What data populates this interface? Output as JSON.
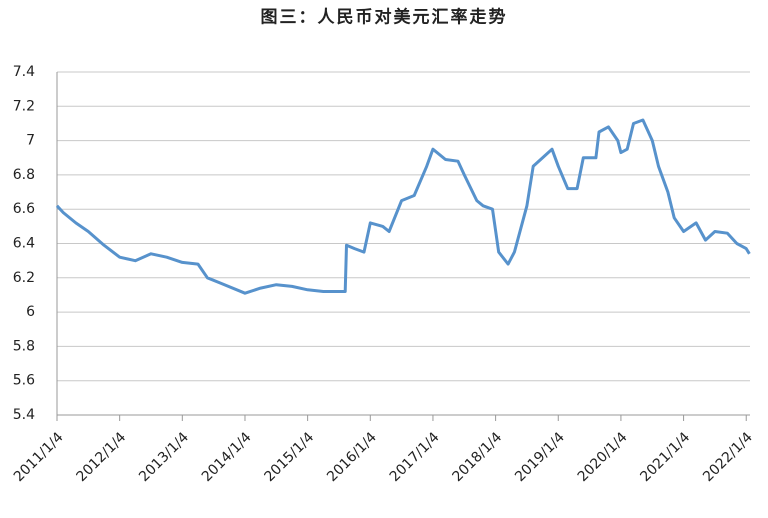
{
  "chart_data": {
    "type": "line",
    "title": "图三：人民币对美元汇率走势",
    "x": [
      2011.0,
      2011.1,
      2011.3,
      2011.5,
      2011.75,
      2012.0,
      2012.25,
      2012.5,
      2012.75,
      2013.0,
      2013.25,
      2013.4,
      2013.6,
      2014.0,
      2014.25,
      2014.5,
      2014.75,
      2015.0,
      2015.25,
      2015.5,
      2015.6,
      2015.62,
      2015.75,
      2015.9,
      2016.0,
      2016.2,
      2016.3,
      2016.5,
      2016.7,
      2016.9,
      2017.0,
      2017.2,
      2017.4,
      2017.5,
      2017.7,
      2017.8,
      2017.95,
      2018.05,
      2018.2,
      2018.3,
      2018.5,
      2018.6,
      2018.75,
      2018.9,
      2019.0,
      2019.15,
      2019.3,
      2019.4,
      2019.6,
      2019.65,
      2019.8,
      2019.95,
      2020.0,
      2020.1,
      2020.2,
      2020.35,
      2020.5,
      2020.6,
      2020.75,
      2020.85,
      2021.0,
      2021.2,
      2021.35,
      2021.5,
      2021.7,
      2021.85,
      2022.0,
      2022.05
    ],
    "series": [
      {
        "color": "#5792cc",
        "values": [
          6.62,
          6.58,
          6.52,
          6.47,
          6.39,
          6.32,
          6.3,
          6.34,
          6.32,
          6.29,
          6.28,
          6.2,
          6.17,
          6.11,
          6.14,
          6.16,
          6.15,
          6.13,
          6.12,
          6.12,
          6.12,
          6.39,
          6.37,
          6.35,
          6.52,
          6.5,
          6.47,
          6.65,
          6.68,
          6.85,
          6.95,
          6.89,
          6.88,
          6.8,
          6.65,
          6.62,
          6.6,
          6.35,
          6.28,
          6.35,
          6.62,
          6.85,
          6.9,
          6.95,
          6.85,
          6.72,
          6.72,
          6.9,
          6.9,
          7.05,
          7.08,
          7.0,
          6.93,
          6.95,
          7.1,
          7.12,
          7.0,
          6.85,
          6.7,
          6.55,
          6.47,
          6.52,
          6.42,
          6.47,
          6.46,
          6.4,
          6.37,
          6.34
        ]
      }
    ],
    "xlim": [
      2011,
      2022.06
    ],
    "xticks": [
      {
        "value": 2011,
        "label": "2011/1/4"
      },
      {
        "value": 2012,
        "label": "2012/1/4"
      },
      {
        "value": 2013,
        "label": "2013/1/4"
      },
      {
        "value": 2014,
        "label": "2014/1/4"
      },
      {
        "value": 2015,
        "label": "2015/1/4"
      },
      {
        "value": 2016,
        "label": "2016/1/4"
      },
      {
        "value": 2017,
        "label": "2017/1/4"
      },
      {
        "value": 2018,
        "label": "2018/1/4"
      },
      {
        "value": 2019,
        "label": "2019/1/4"
      },
      {
        "value": 2020,
        "label": "2020/1/4"
      },
      {
        "value": 2021,
        "label": "2021/1/4"
      },
      {
        "value": 2022,
        "label": "2022/1/4"
      }
    ],
    "ylim": [
      5.4,
      7.4
    ],
    "yticks": [
      5.4,
      5.6,
      5.8,
      6,
      6.2,
      6.4,
      6.6,
      6.8,
      7,
      7.2,
      7.4
    ],
    "grid": true
  }
}
